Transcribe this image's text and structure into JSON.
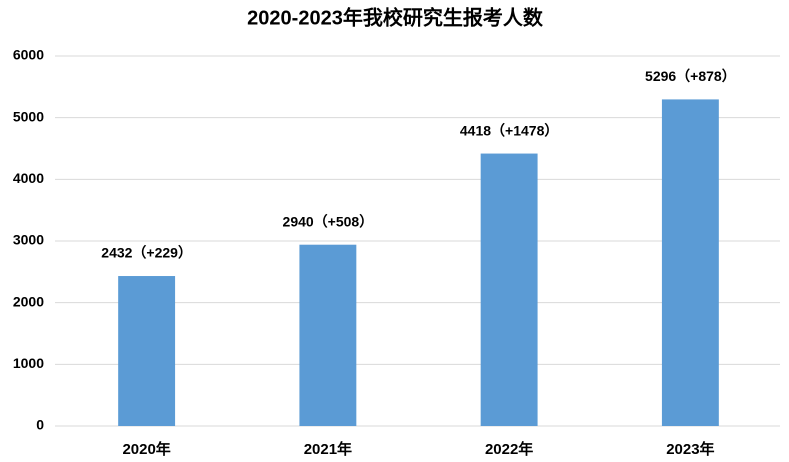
{
  "chart_data": {
    "type": "bar",
    "title": "2020-2023年我校研究生报考人数",
    "categories": [
      "2020年",
      "2021年",
      "2022年",
      "2023年"
    ],
    "values": [
      2432,
      2940,
      4418,
      5296
    ],
    "value_labels": [
      "2432（+229）",
      "2940（+508）",
      "4418（+1478）",
      "5296（+878）"
    ],
    "color": "#5b9bd5",
    "ylim": [
      0,
      6000
    ],
    "yticks": [
      0,
      1000,
      2000,
      3000,
      4000,
      5000,
      6000
    ],
    "grid": true
  }
}
